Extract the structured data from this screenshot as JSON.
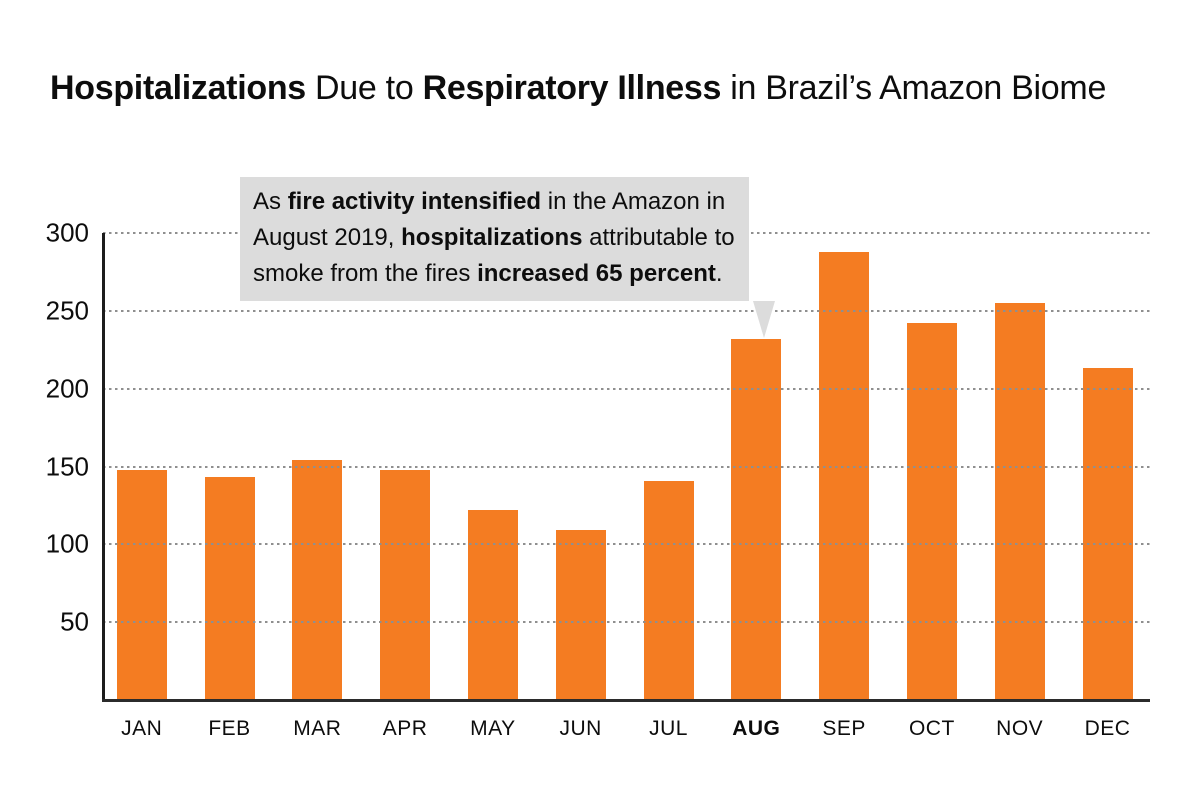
{
  "title": {
    "part1": "Hospitalizations",
    "part2": " Due to ",
    "part3": "Respiratory Illness",
    "part4": " in Brazil’s Amazon Biome"
  },
  "annotation": {
    "lines": [
      {
        "pre": "As ",
        "bold": "fire activity intensified",
        "post": " in the Amazon in"
      },
      {
        "pre": "August 2019, ",
        "bold": "hospitalizations",
        "post": " attributable to"
      },
      {
        "pre": "smoke from the fires ",
        "bold": "increased 65 percent",
        "post": "."
      }
    ]
  },
  "colors": {
    "bar": "#F47C22",
    "callout_bg": "#DCDCDC",
    "grid": "#8F8F8F",
    "axis": "#1C1C1C",
    "text": "#0D0D0D"
  },
  "chart_data": {
    "type": "bar",
    "title": "Hospitalizations Due to Respiratory Illness in Brazil’s Amazon Biome",
    "categories": [
      "JAN",
      "FEB",
      "MAR",
      "APR",
      "MAY",
      "JUN",
      "JUL",
      "AUG",
      "SEP",
      "OCT",
      "NOV",
      "DEC"
    ],
    "values": [
      148,
      143,
      154,
      148,
      122,
      109,
      141,
      232,
      288,
      242,
      255,
      213
    ],
    "highlighted_category": "AUG",
    "xlabel": "",
    "ylabel": "",
    "ylim": [
      0,
      300
    ],
    "yticks": [
      50,
      100,
      150,
      200,
      250,
      300
    ],
    "grid": "horizontal-dotted",
    "legend": "none",
    "annotation_note": "As fire activity intensified in the Amazon in August 2019, hospitalizations attributable to smoke from the fires increased 65 percent."
  }
}
